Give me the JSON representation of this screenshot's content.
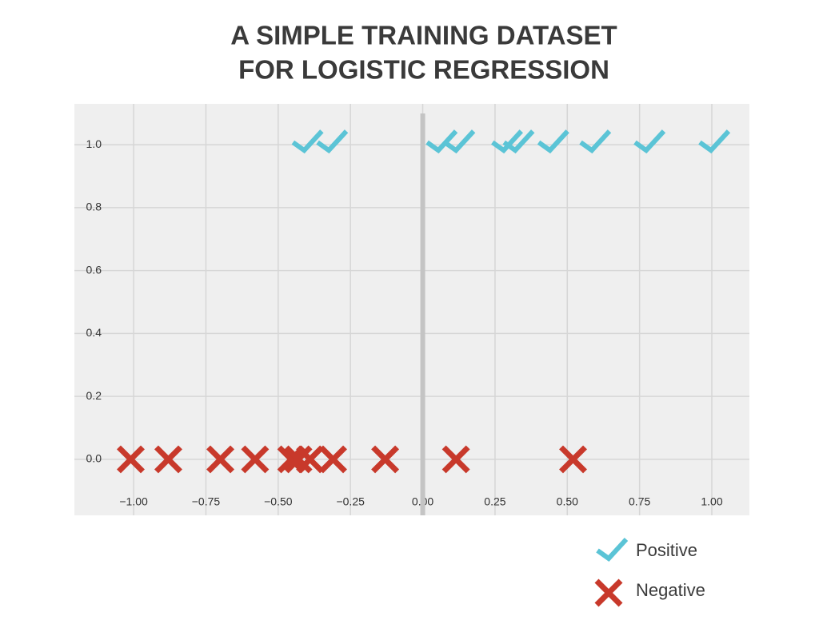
{
  "chart_data": {
    "type": "scatter",
    "title": [
      "A SIMPLE TRAINING DATASET",
      "FOR LOGISTIC REGRESSION"
    ],
    "xlim": [
      -1.205,
      1.13
    ],
    "ylim": [
      -0.178,
      1.13
    ],
    "xticks": [
      {
        "value": -1.0,
        "label": "−1.00"
      },
      {
        "value": -0.75,
        "label": "−0.75"
      },
      {
        "value": -0.5,
        "label": "−0.50"
      },
      {
        "value": -0.25,
        "label": "−0.25"
      },
      {
        "value": 0,
        "label": "0.00"
      },
      0.25,
      {
        "value": 0.5,
        "label": "0.50"
      },
      0.75,
      {
        "value": 1.0,
        "label": "1.00"
      }
    ],
    "yticks": [
      {
        "value": 0,
        "label": "0.0"
      },
      0.2,
      0.4,
      0.6,
      0.8,
      {
        "value": 1.0,
        "label": "1.0"
      }
    ],
    "grid": true,
    "legend": "below-right",
    "series": [
      {
        "name": "Positive",
        "color": "#5bc4d6",
        "marker": "check",
        "x": [
          -0.41,
          -0.325,
          0.054,
          0.115,
          0.28,
          0.32,
          0.44,
          0.585,
          0.773,
          0.997
        ],
        "values": [
          1,
          1,
          1,
          1,
          1,
          1,
          1,
          1,
          1,
          1
        ]
      },
      {
        "name": "Negative",
        "color": "#c8392b",
        "marker": "x",
        "x": [
          -1.01,
          -0.88,
          -0.7,
          -0.58,
          -0.455,
          -0.43,
          -0.39,
          -0.31,
          -0.13,
          0.115,
          0.52
        ],
        "values": [
          0,
          0,
          0,
          0,
          0,
          0,
          0,
          0,
          0,
          0,
          0
        ]
      }
    ]
  }
}
